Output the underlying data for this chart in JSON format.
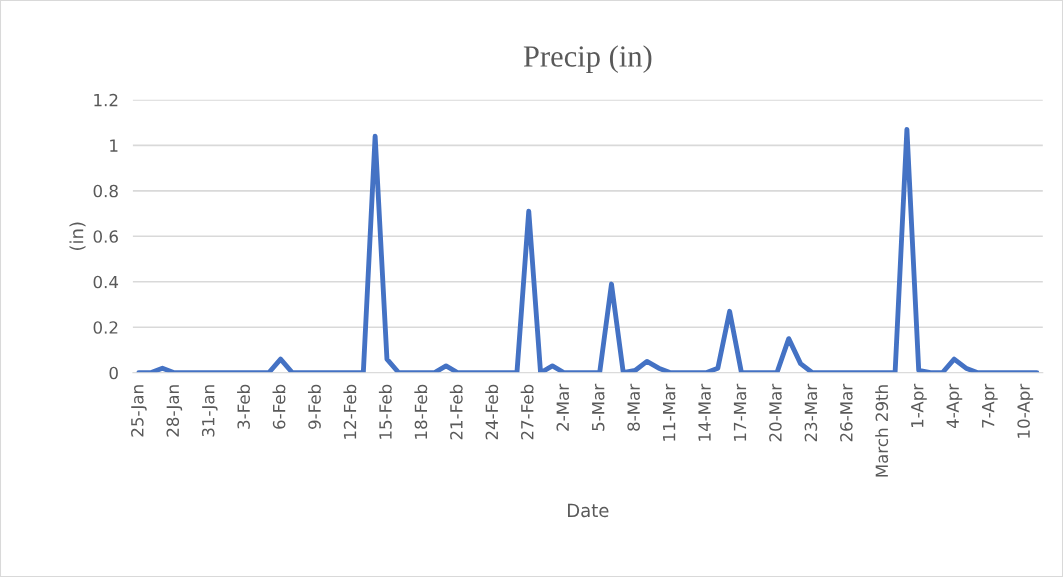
{
  "chart_data": {
    "type": "line",
    "title": "Precip (in)",
    "xlabel": "Date",
    "ylabel": "(in)",
    "categories": [
      "25-Jan",
      null,
      null,
      "28-Jan",
      null,
      null,
      "31-Jan",
      null,
      null,
      "3-Feb",
      null,
      null,
      "6-Feb",
      null,
      null,
      "9-Feb",
      null,
      null,
      "12-Feb",
      null,
      null,
      "15-Feb",
      null,
      null,
      "18-Feb",
      null,
      null,
      "21-Feb",
      null,
      null,
      "24-Feb",
      null,
      null,
      "27-Feb",
      null,
      null,
      "2-Mar",
      null,
      null,
      "5-Mar",
      null,
      null,
      "8-Mar",
      null,
      null,
      "11-Mar",
      null,
      null,
      "14-Mar",
      null,
      null,
      "17-Mar",
      null,
      null,
      "20-Mar",
      null,
      null,
      "23-Mar",
      null,
      null,
      "26-Mar",
      null,
      null,
      "March 29th",
      null,
      null,
      "1-Apr",
      null,
      null,
      "4-Apr",
      null,
      null,
      "7-Apr",
      null,
      null,
      "10-Apr",
      null
    ],
    "series": [
      {
        "color": "#4472c4",
        "values": [
          0,
          0,
          0.02,
          0,
          0,
          0,
          0,
          0,
          0,
          0,
          0,
          0,
          0.06,
          0,
          0,
          0,
          0,
          0,
          0,
          0,
          1.04,
          0.06,
          0,
          0,
          0,
          0,
          0.03,
          0,
          0,
          0,
          0,
          0,
          0,
          0.71,
          0,
          0.03,
          0,
          0,
          0,
          0,
          0.39,
          0,
          0.01,
          0.05,
          0.02,
          0,
          0,
          0,
          0,
          0.02,
          0.27,
          0,
          0,
          0,
          0,
          0.15,
          0.04,
          0,
          0,
          0,
          0,
          0,
          0,
          0,
          0,
          1.07,
          0.01,
          0,
          0,
          0.06,
          0.02,
          0,
          0,
          0,
          0,
          0,
          0
        ]
      }
    ],
    "ylim": [
      0,
      1.2
    ],
    "yticks": [
      0,
      0.2,
      0.4,
      0.6,
      0.8,
      1,
      1.2
    ],
    "grid": "y",
    "marker": "none",
    "line_style": "solid"
  }
}
